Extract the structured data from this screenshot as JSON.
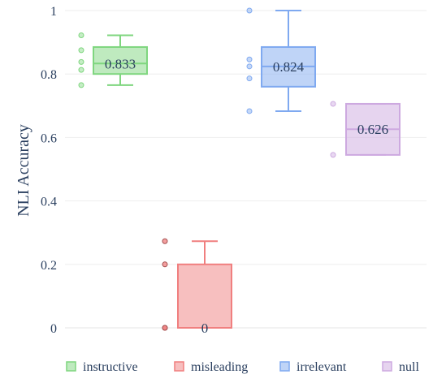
{
  "chart_data": {
    "type": "box",
    "ylabel": "NLI Accuracy",
    "xlabel": "",
    "ylim": [
      0,
      1
    ],
    "yticks": [
      0,
      0.2,
      0.4,
      0.6,
      0.8,
      1
    ],
    "ytick_labels": [
      "0",
      "0.2",
      "0.4",
      "0.6",
      "0.8",
      "1"
    ],
    "grid": true,
    "legend_position": "bottom",
    "series": [
      {
        "name": "instructive",
        "color": "#7fd67f",
        "q1": 0.8,
        "median": 0.833,
        "q3": 0.885,
        "whisker_low": 0.765,
        "whisker_high": 0.922,
        "points": [
          0.922,
          0.875,
          0.838,
          0.813,
          0.765
        ],
        "median_label": "0.833"
      },
      {
        "name": "misleading",
        "color": "#f07f7f",
        "q1": 0.0,
        "median": 0.0,
        "q3": 0.2,
        "whisker_low": 0.0,
        "whisker_high": 0.273,
        "points": [
          0.273,
          0.2,
          0.0,
          0.0
        ],
        "median_label": "0"
      },
      {
        "name": "irrelevant",
        "color": "#7fa9f0",
        "q1": 0.76,
        "median": 0.824,
        "q3": 0.885,
        "whisker_low": 0.683,
        "whisker_high": 1.0,
        "points": [
          1.0,
          0.846,
          0.824,
          0.786,
          0.683
        ],
        "median_label": "0.824"
      },
      {
        "name": "null",
        "color": "#cda9e0",
        "q1": 0.545,
        "median": 0.626,
        "q3": 0.706,
        "whisker_low": 0.545,
        "whisker_high": 0.706,
        "points": [
          0.706,
          0.545
        ],
        "median_label": "0.626"
      }
    ]
  }
}
